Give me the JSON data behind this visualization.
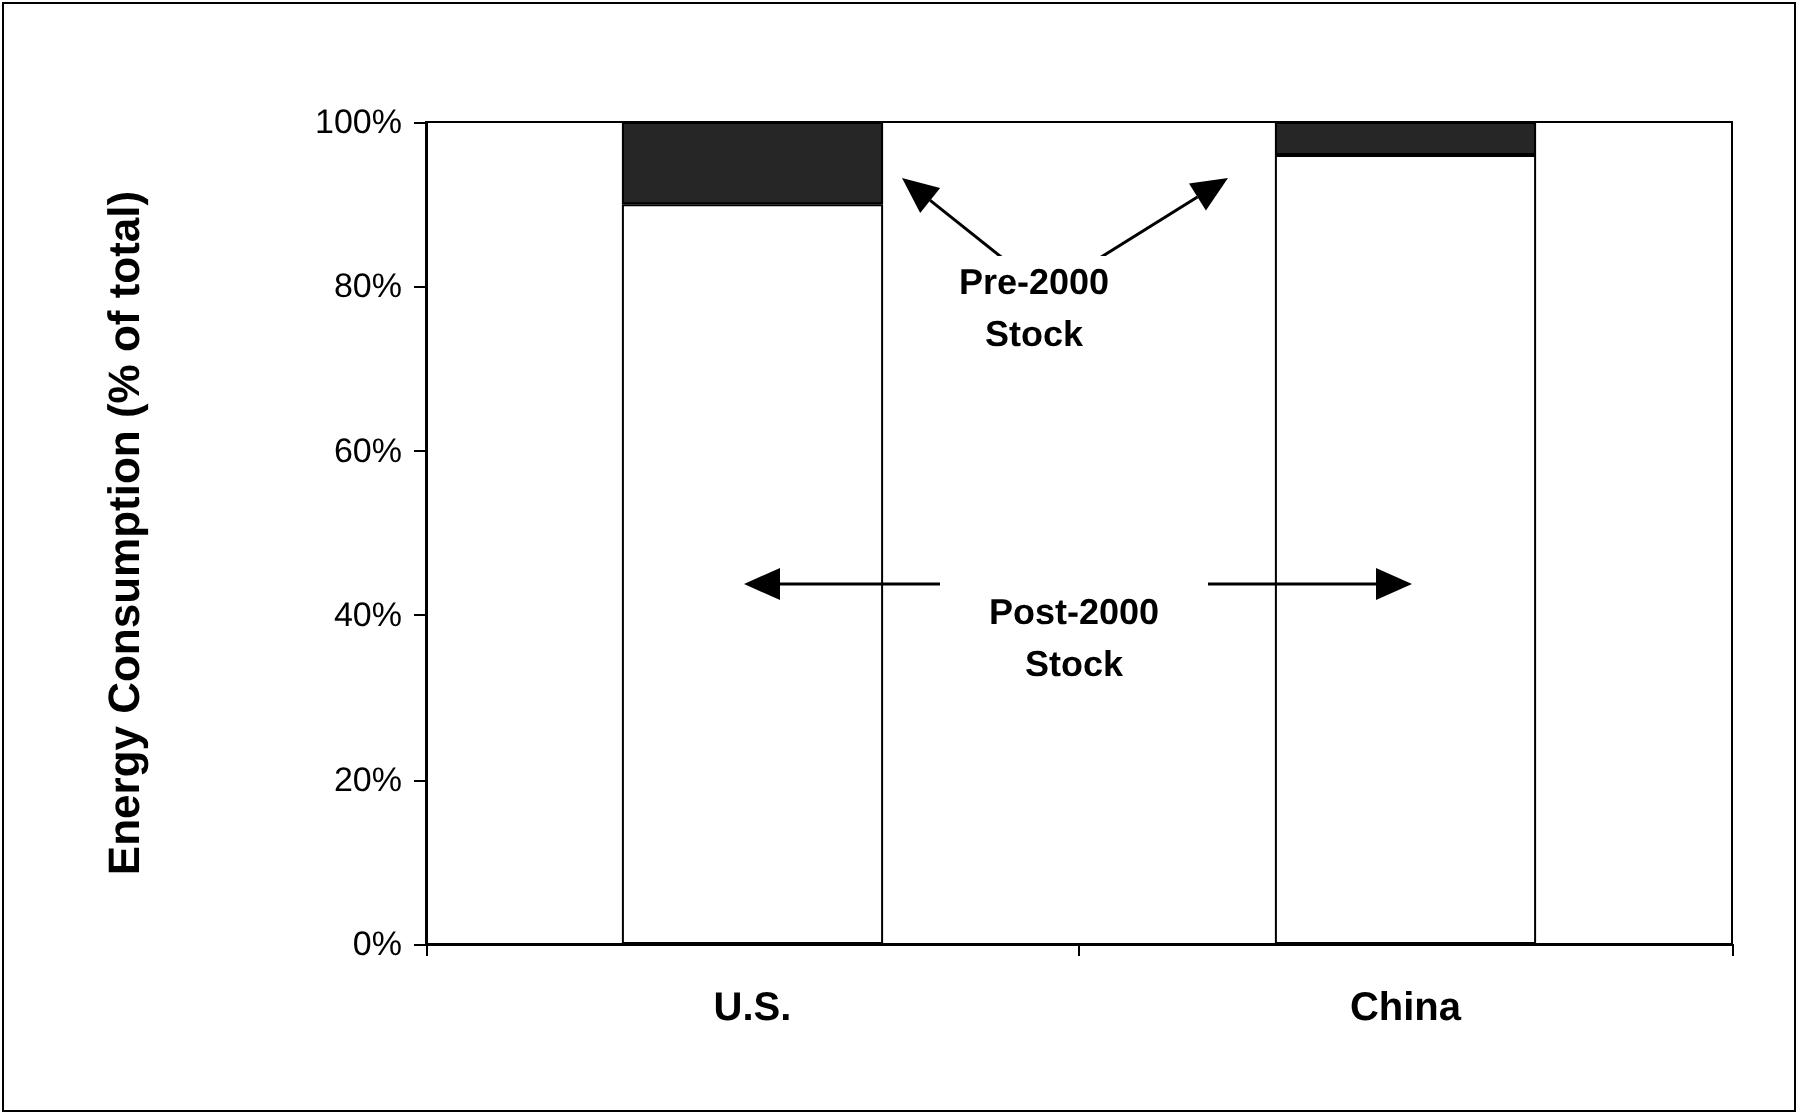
{
  "chart_data": {
    "type": "bar",
    "stacked": true,
    "ylabel": "Energy Consumption (% of total)",
    "categories": [
      "U.S.",
      "China"
    ],
    "series": [
      {
        "color": "#ffffff",
        "values": [
          90,
          96
        ]
      },
      {
        "color": "#262626",
        "values": [
          10,
          4
        ]
      }
    ],
    "ylim": [
      0,
      100
    ],
    "yticks": [
      {
        "value": 0,
        "label": "0%"
      },
      {
        "value": 20,
        "label": "20%"
      },
      {
        "value": 40,
        "label": "40%"
      },
      {
        "value": 60,
        "label": "60%"
      },
      {
        "value": 80,
        "label": "80%"
      },
      {
        "value": 100,
        "label": "100%"
      }
    ],
    "annotations": [
      "Pre-2000 Stock",
      "Post-2000 Stock"
    ]
  }
}
